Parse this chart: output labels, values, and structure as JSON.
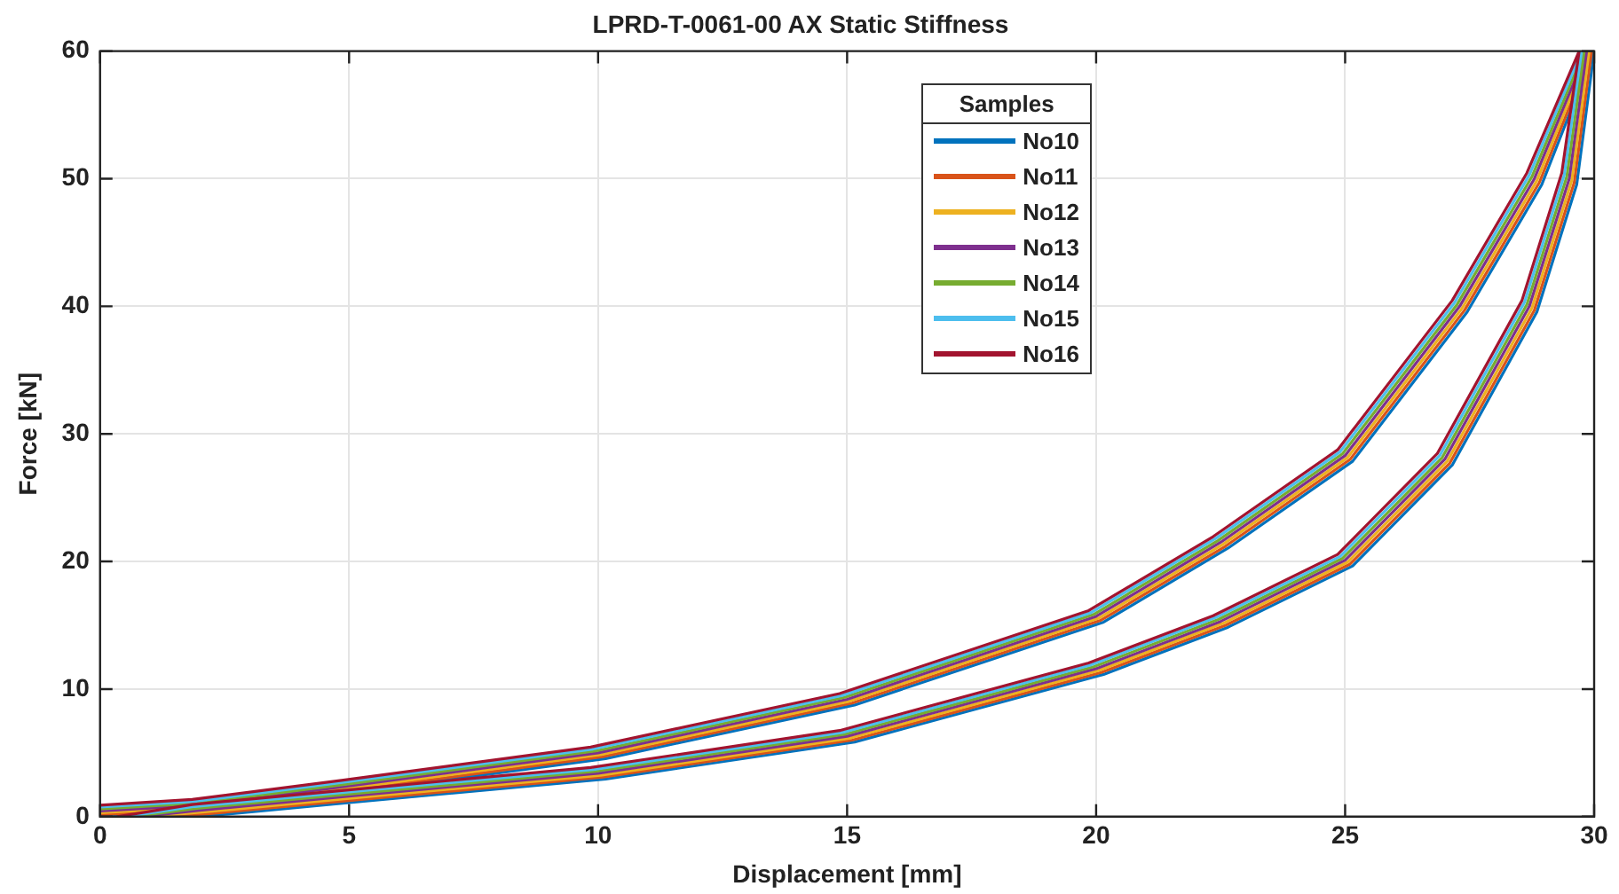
{
  "chart_data": {
    "type": "line",
    "title": "LPRD-T-0061-00 AX Static Stiffness",
    "xlabel": "Displacement [mm]",
    "ylabel": "Force [kN]",
    "xlim": [
      0,
      30
    ],
    "xticks": [
      0,
      5,
      10,
      15,
      20,
      25,
      30
    ],
    "ylim": [
      0,
      60
    ],
    "yticks": [
      0,
      10,
      20,
      30,
      40,
      50,
      60
    ],
    "grid": true,
    "legend": "top",
    "legend_title": "Samples",
    "marker": "none",
    "line_style": "solid",
    "series": [
      {
        "name": "No10",
        "color": "#0072bd",
        "x": [
          1.25,
          2.15,
          5.15,
          10.15,
          15.15,
          20.15,
          22.65,
          25.15,
          27.15,
          28.85,
          29.65,
          30,
          28.95,
          27.45,
          25.15,
          22.65,
          20.15,
          15.15,
          10.15,
          5.15,
          2.15,
          0
        ],
        "values": [
          0,
          0.05,
          1.15,
          2.95,
          5.85,
          11.15,
          14.85,
          19.65,
          27.55,
          39.55,
          49.55,
          60,
          49.55,
          39.55,
          27.85,
          21.05,
          15.25,
          8.75,
          4.55,
          1.95,
          0.45,
          0
        ]
      },
      {
        "name": "No11",
        "color": "#d95319",
        "x": [
          1.1,
          2.1,
          5.1,
          10.1,
          15.1,
          20.1,
          22.6,
          25.1,
          27.1,
          28.8,
          29.6,
          29.95,
          28.9,
          27.4,
          25.1,
          22.6,
          20.1,
          15.1,
          10.1,
          5.1,
          2.1,
          0
        ],
        "values": [
          0,
          0.2,
          1.3,
          3.1,
          6,
          11.3,
          15,
          19.8,
          27.7,
          39.7,
          49.7,
          60,
          49.7,
          39.7,
          28,
          21.2,
          15.4,
          8.9,
          4.7,
          2.1,
          0.6,
          0.15
        ]
      },
      {
        "name": "No12",
        "color": "#edb120",
        "x": [
          0.95,
          2.05,
          5.05,
          10.05,
          15.05,
          20.05,
          22.55,
          25.05,
          27.05,
          28.75,
          29.55,
          29.9,
          28.85,
          27.35,
          25.05,
          22.55,
          20.05,
          15.05,
          10.05,
          5.05,
          2.05,
          0
        ],
        "values": [
          0,
          0.35,
          1.45,
          3.25,
          6.15,
          11.45,
          15.15,
          19.95,
          27.85,
          39.85,
          49.85,
          60,
          49.85,
          39.85,
          28.15,
          21.35,
          15.55,
          9.05,
          4.85,
          2.25,
          0.75,
          0.3
        ]
      },
      {
        "name": "No13",
        "color": "#7e2f8e",
        "x": [
          0.8,
          2,
          5,
          10,
          15,
          20,
          22.5,
          25,
          27,
          28.7,
          29.5,
          29.85,
          28.8,
          27.3,
          25,
          22.5,
          20,
          15,
          10,
          5,
          2,
          0
        ],
        "values": [
          0,
          0.5,
          1.6,
          3.4,
          6.3,
          11.6,
          15.3,
          20.1,
          28,
          40,
          50,
          60,
          50,
          40,
          28.3,
          21.5,
          15.7,
          9.2,
          5,
          2.4,
          0.9,
          0.45
        ]
      },
      {
        "name": "No14",
        "color": "#77ac30",
        "x": [
          0.65,
          1.95,
          4.95,
          9.95,
          14.95,
          19.95,
          22.45,
          24.95,
          26.95,
          28.65,
          29.45,
          29.8,
          28.75,
          27.25,
          24.95,
          22.45,
          19.95,
          14.95,
          9.95,
          4.95,
          1.95,
          0
        ],
        "values": [
          0,
          0.65,
          1.75,
          3.55,
          6.45,
          11.75,
          15.45,
          20.25,
          28.15,
          40.15,
          50.15,
          60,
          50.15,
          40.15,
          28.45,
          21.65,
          15.85,
          9.35,
          5.15,
          2.55,
          1.05,
          0.6
        ]
      },
      {
        "name": "No15",
        "color": "#4dbeee",
        "x": [
          0.5,
          1.9,
          4.9,
          9.9,
          14.9,
          19.9,
          22.4,
          24.9,
          26.9,
          28.6,
          29.4,
          29.75,
          28.7,
          27.2,
          24.9,
          22.4,
          19.9,
          14.9,
          9.9,
          4.9,
          1.9,
          0
        ],
        "values": [
          0,
          0.8,
          1.9,
          3.7,
          6.6,
          11.9,
          15.6,
          20.4,
          28.3,
          40.3,
          50.3,
          60,
          50.3,
          40.3,
          28.6,
          21.8,
          16,
          9.5,
          5.3,
          2.7,
          1.2,
          0.75
        ]
      },
      {
        "name": "No16",
        "color": "#a2142f",
        "x": [
          0.35,
          1.85,
          4.85,
          9.85,
          14.85,
          19.85,
          22.35,
          24.85,
          26.85,
          28.55,
          29.35,
          29.7,
          28.65,
          27.15,
          24.85,
          22.35,
          19.85,
          14.85,
          9.85,
          4.85,
          1.85,
          0
        ],
        "values": [
          0,
          0.95,
          2.05,
          3.85,
          6.75,
          12.05,
          15.75,
          20.55,
          28.45,
          40.45,
          50.45,
          60,
          50.45,
          40.45,
          28.75,
          21.95,
          16.15,
          9.65,
          5.45,
          2.85,
          1.35,
          0.9
        ]
      }
    ]
  }
}
